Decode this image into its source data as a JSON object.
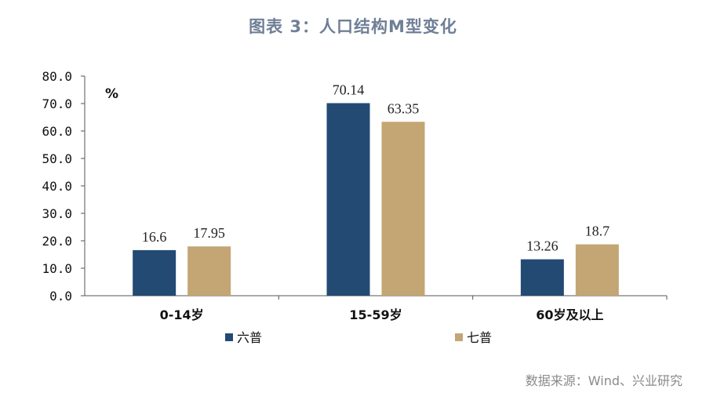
{
  "chart_data": {
    "type": "bar",
    "title": "图表 3：人口结构M型变化",
    "unit_label": "%",
    "categories": [
      "0-14岁",
      "15-59岁",
      "60岁及以上"
    ],
    "series": [
      {
        "name": "六普",
        "color": "#234a73",
        "values": [
          16.6,
          70.14,
          13.26
        ],
        "labels": [
          "16.6",
          "70.14",
          "13.26"
        ]
      },
      {
        "name": "七普",
        "color": "#c4a574",
        "values": [
          17.95,
          63.35,
          18.7
        ],
        "labels": [
          "17.95",
          "63.35",
          "18.7"
        ]
      }
    ],
    "ylim": [
      0,
      80
    ],
    "yticks": [
      "0.0",
      "10.0",
      "20.0",
      "30.0",
      "40.0",
      "50.0",
      "60.0",
      "70.0",
      "80.0"
    ],
    "grid": false,
    "legend_position": "bottom"
  },
  "source": "数据来源：Wind、兴业研究"
}
